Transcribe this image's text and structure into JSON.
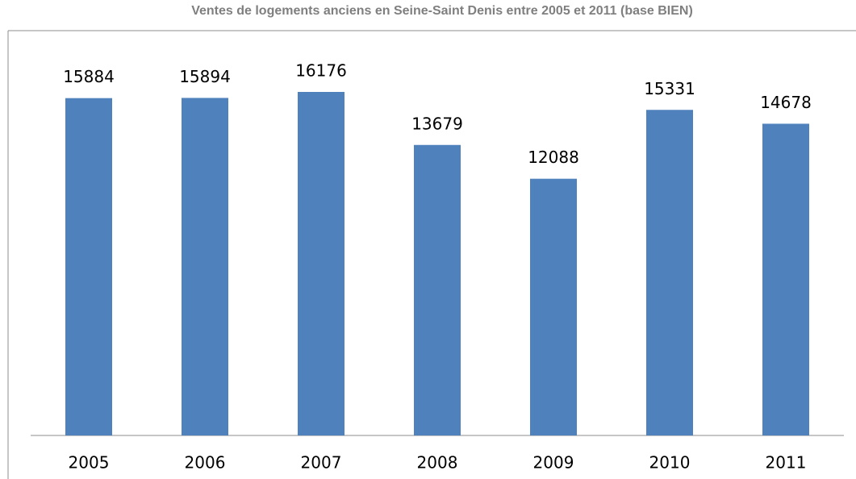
{
  "chart_data": {
    "type": "bar",
    "title": "Ventes de logements anciens en Seine-Saint Denis entre 2005 et 2011 (base BIEN)",
    "categories": [
      "2005",
      "2006",
      "2007",
      "2008",
      "2009",
      "2010",
      "2011"
    ],
    "values": [
      15884,
      15894,
      16176,
      13679,
      12088,
      15331,
      14678
    ],
    "color": "#4f81bd"
  }
}
